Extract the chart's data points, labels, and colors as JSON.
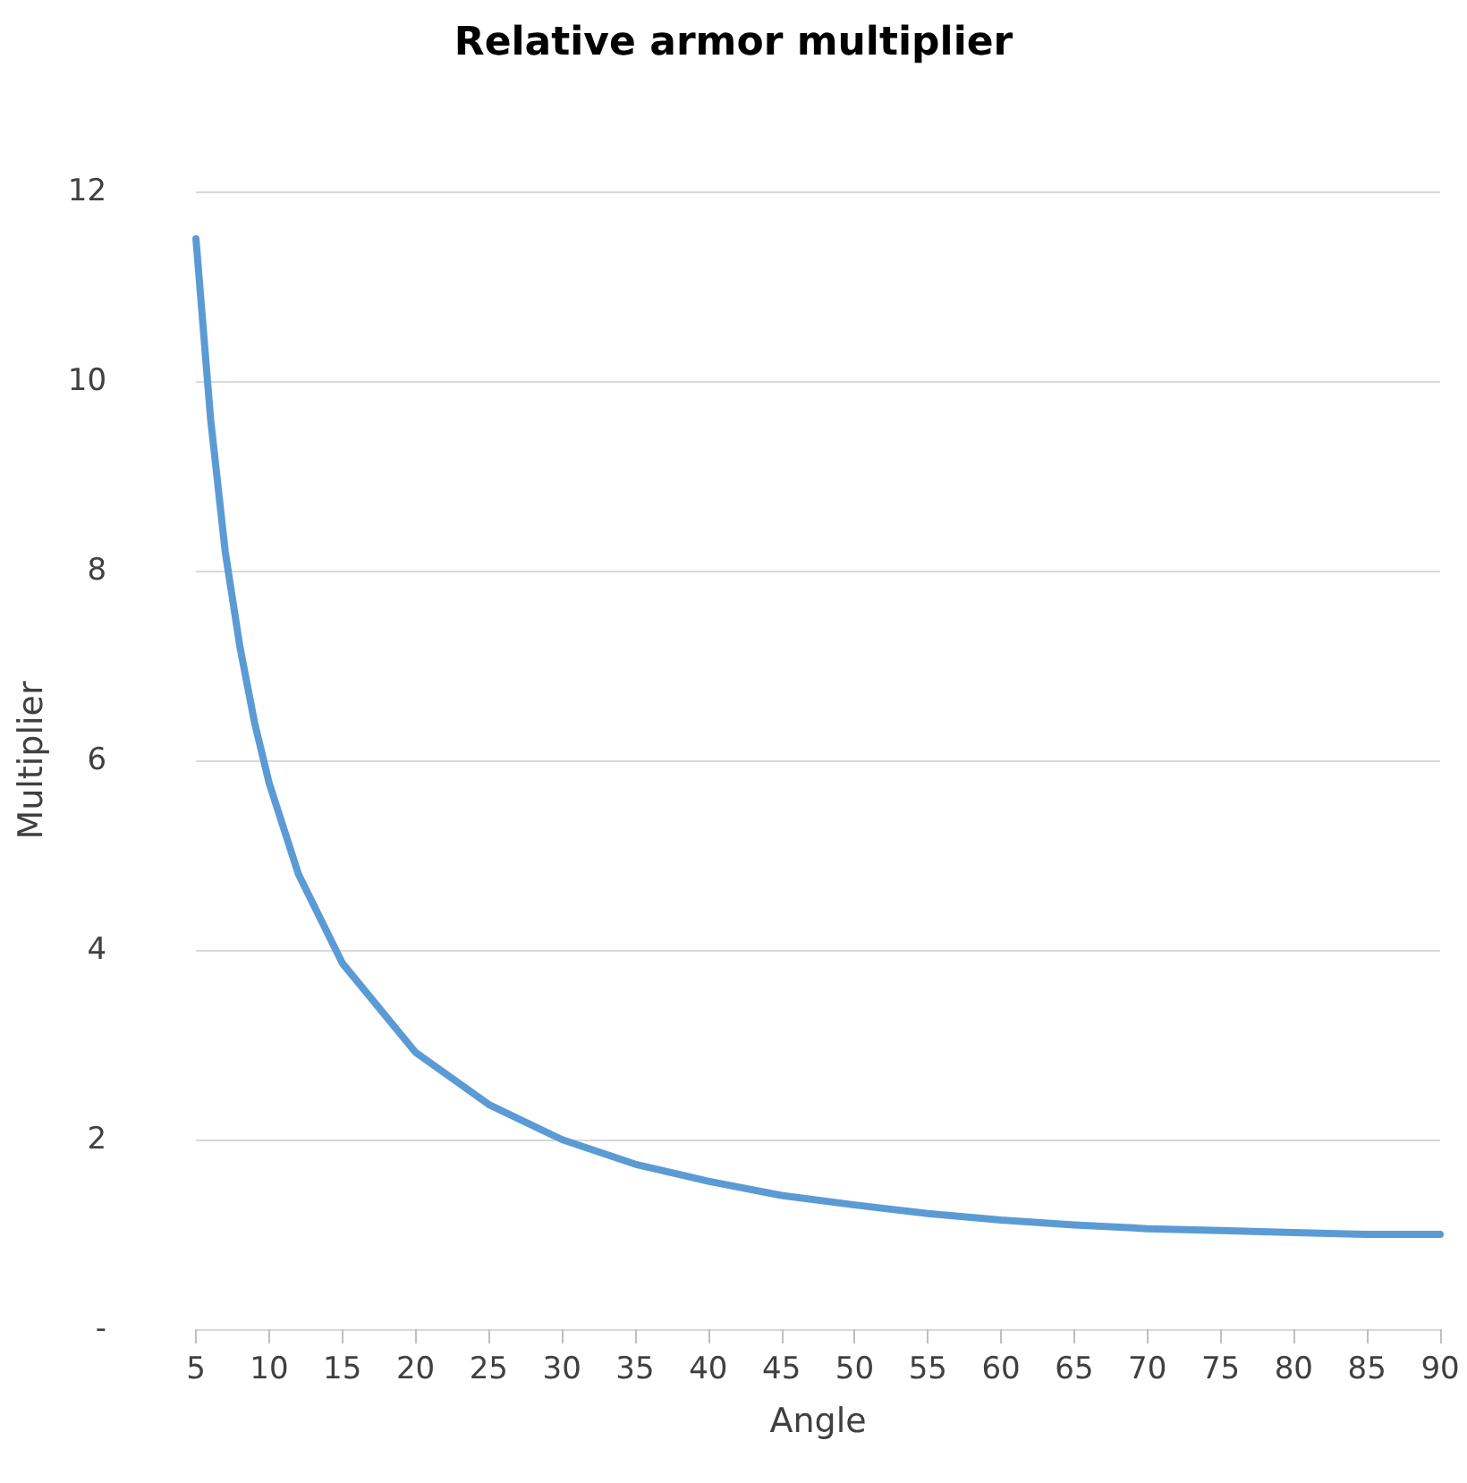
{
  "chart_data": {
    "type": "line",
    "title": "Relative armor multiplier",
    "xlabel": "Angle",
    "ylabel": "Multiplier",
    "x": [
      5,
      6,
      7,
      8,
      9,
      10,
      12,
      15,
      20,
      25,
      30,
      35,
      40,
      45,
      50,
      55,
      60,
      65,
      70,
      75,
      80,
      85,
      90
    ],
    "series": [
      {
        "color": "#5b9bd5",
        "values": [
          11.5,
          9.6,
          8.2,
          7.2,
          6.4,
          5.76,
          4.8,
          3.86,
          2.92,
          2.37,
          2.0,
          1.74,
          1.56,
          1.41,
          1.31,
          1.22,
          1.15,
          1.1,
          1.06,
          1.04,
          1.02,
          1.0,
          1.0
        ]
      }
    ],
    "xlim": [
      5,
      90
    ],
    "xticks": [
      5,
      10,
      15,
      20,
      25,
      30,
      35,
      40,
      45,
      50,
      55,
      60,
      65,
      70,
      75,
      80,
      85,
      90
    ],
    "ylim": [
      0,
      12
    ],
    "yticks": [
      {
        "value": 0,
        "label": "-"
      },
      2,
      4,
      6,
      8,
      10,
      12
    ],
    "grid": "y"
  }
}
